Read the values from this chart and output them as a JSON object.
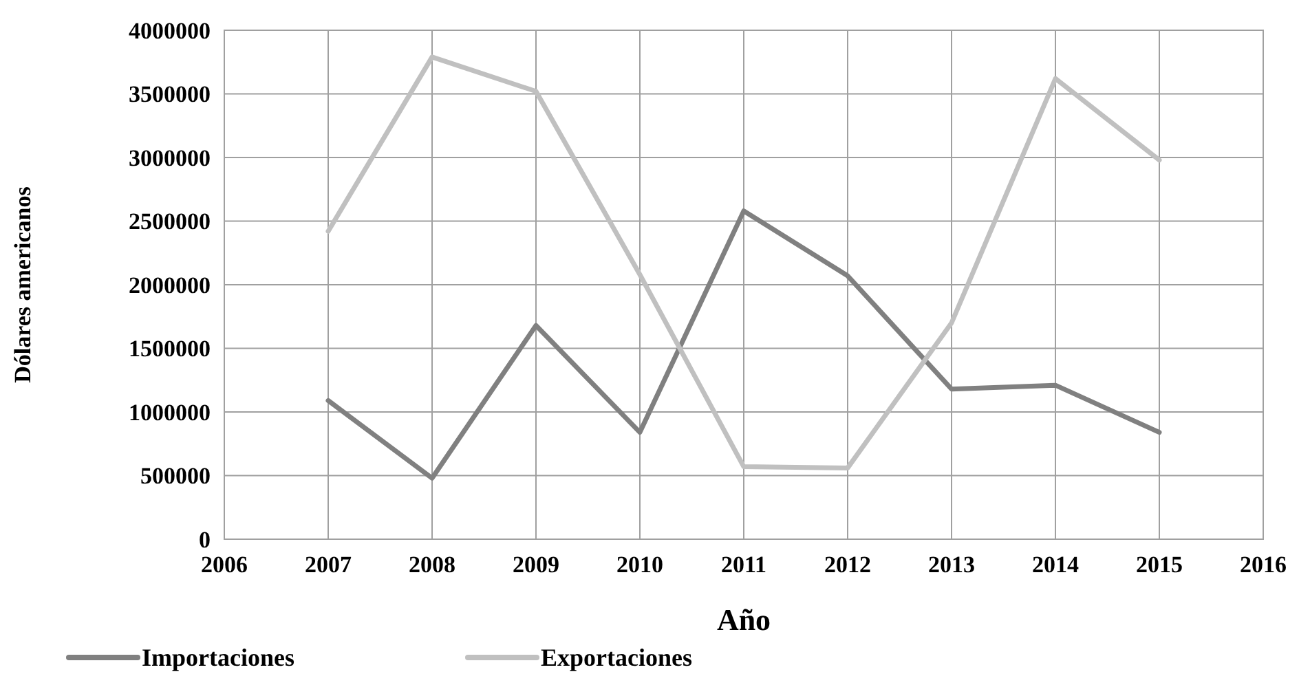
{
  "chart_data": {
    "type": "line",
    "xlabel": "Año",
    "ylabel": "Dólares americanos",
    "x": [
      2007,
      2008,
      2009,
      2010,
      2011,
      2012,
      2013,
      2014,
      2015
    ],
    "series": [
      {
        "name": "Importaciones",
        "color": "#808080",
        "values": [
          1090000,
          480000,
          1680000,
          840000,
          2580000,
          2070000,
          1180000,
          1210000,
          840000
        ]
      },
      {
        "name": "Exportaciones",
        "color": "#c0c0c0",
        "values": [
          2420000,
          3790000,
          3520000,
          2080000,
          570000,
          560000,
          1700000,
          3620000,
          2980000
        ]
      }
    ],
    "xlim": [
      2006,
      2016
    ],
    "xticks": [
      2006,
      2007,
      2008,
      2009,
      2010,
      2011,
      2012,
      2013,
      2014,
      2015,
      2016
    ],
    "ylim": [
      0,
      4000000
    ],
    "yticks": [
      0,
      500000,
      1000000,
      1500000,
      2000000,
      2500000,
      3000000,
      3500000,
      4000000
    ],
    "grid": true,
    "legend": "bottom left",
    "marker": "none",
    "line_style": "solid"
  }
}
